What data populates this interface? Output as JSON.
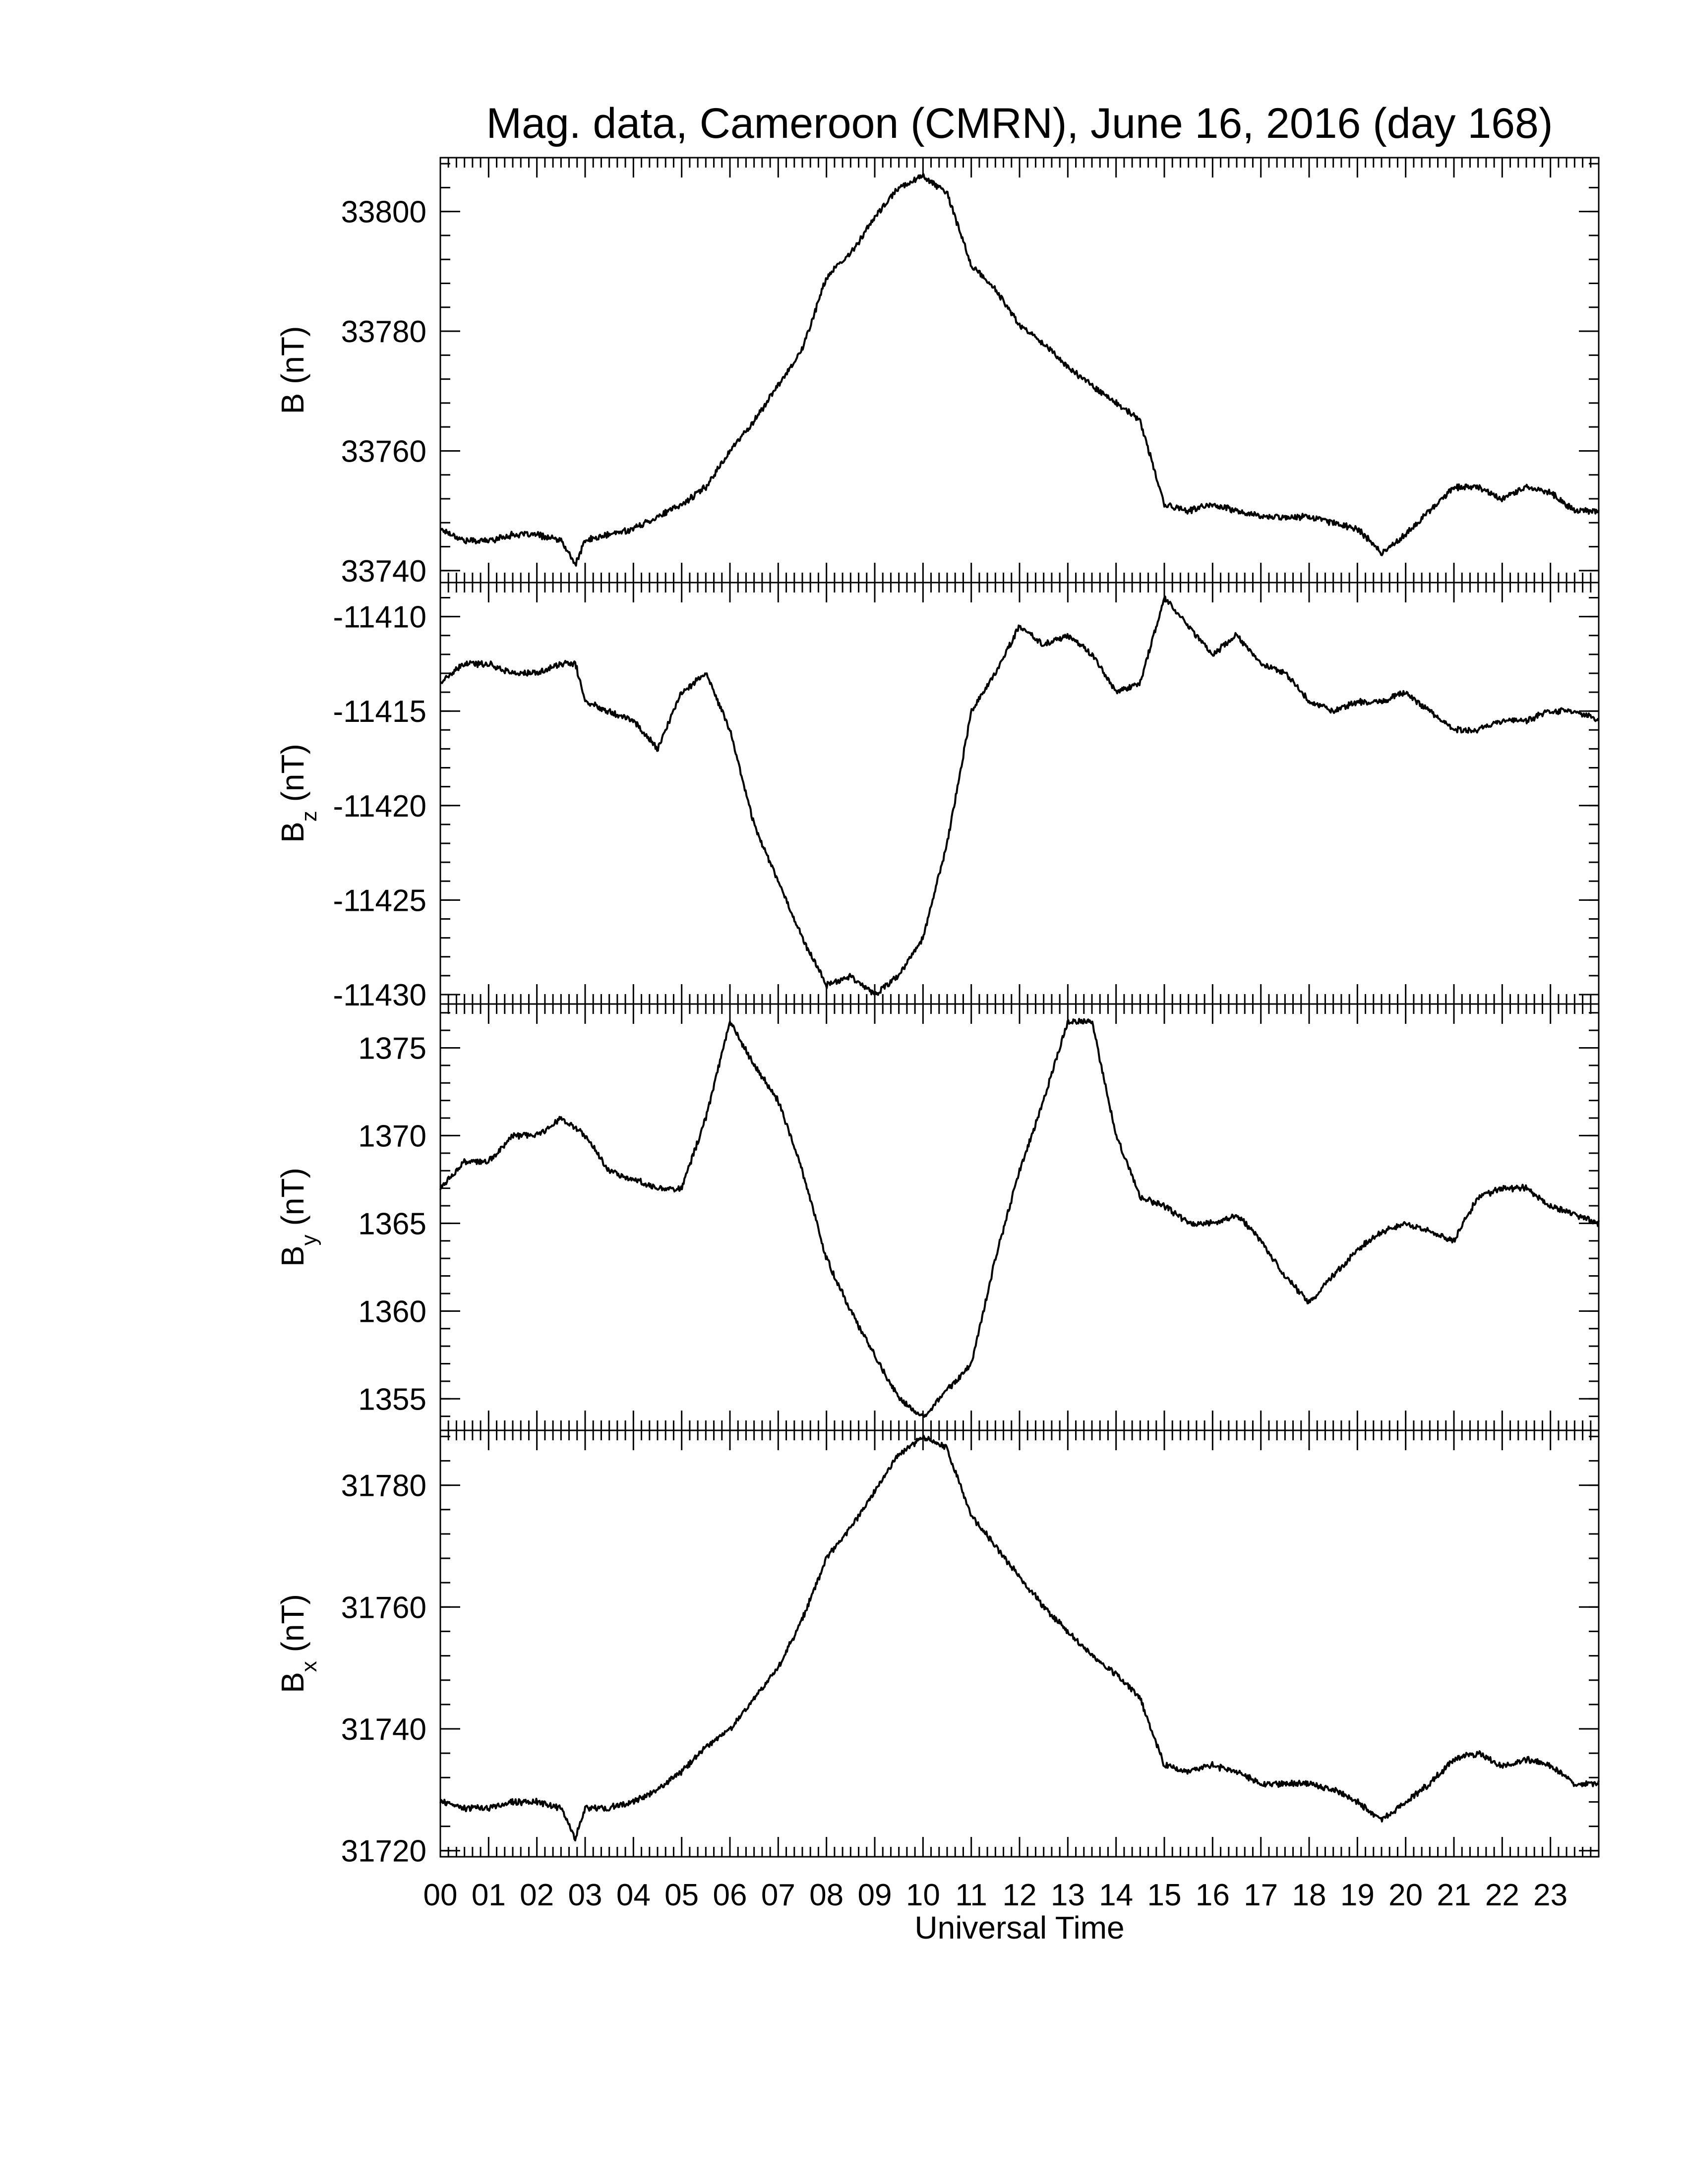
{
  "title": "Mag. data, Cameroon (CMRN), June 16, 2016 (day 168)",
  "colors": {
    "line": "#000000",
    "axes": "#000000",
    "background": "#ffffff"
  },
  "chart_data": {
    "type": "line",
    "title": "Mag. data, Cameroon (CMRN), June 16, 2016 (day 168)",
    "xlabel": "Universal Time",
    "x_tick_labels": [
      "00",
      "01",
      "02",
      "03",
      "04",
      "05",
      "06",
      "07",
      "08",
      "09",
      "10",
      "11",
      "12",
      "13",
      "14",
      "15",
      "16",
      "17",
      "18",
      "19",
      "20",
      "21",
      "22",
      "23"
    ],
    "xlim": [
      0,
      24
    ],
    "x_units": "hours UT",
    "grid": false,
    "legend": "none",
    "panels": [
      {
        "name": "B",
        "ylabel_main": "B",
        "ylabel_sub": "",
        "ylabel_unit": "(nT)",
        "ylim": [
          33738,
          33809
        ],
        "yticks": [
          33740,
          33760,
          33780,
          33800
        ],
        "ytick_labels": [
          "33740",
          "33760",
          "33780",
          "33800"
        ],
        "x": [
          0,
          0.5,
          1,
          1.5,
          2,
          2.5,
          2.8,
          3,
          3.5,
          4,
          4.5,
          5,
          5.5,
          6,
          6.5,
          7,
          7.5,
          8,
          8.5,
          9,
          9.5,
          10,
          10.5,
          11,
          11.5,
          12,
          12.5,
          13,
          13.5,
          14,
          14.5,
          15,
          15.5,
          16,
          16.5,
          17,
          17.5,
          18,
          18.5,
          19,
          19.5,
          20,
          20.5,
          21,
          21.5,
          22,
          22.5,
          23,
          23.5,
          24
        ],
        "y": [
          33747,
          33745,
          33745,
          33746,
          33746,
          33745,
          33741,
          33745,
          33746,
          33747,
          33749,
          33751,
          33754,
          33760,
          33765,
          33771,
          33777,
          33789,
          33793,
          33799,
          33804,
          33806,
          33803,
          33791,
          33787,
          33781,
          33778,
          33774,
          33771,
          33768,
          33765,
          33751,
          33750,
          33751,
          33750,
          33749,
          33749,
          33749,
          33748,
          33747,
          33743,
          33746,
          33750,
          33754,
          33754,
          33752,
          33754,
          33753,
          33750,
          33750
        ]
      },
      {
        "name": "Bz",
        "ylabel_main": "B",
        "ylabel_sub": "z",
        "ylabel_unit": "(nT)",
        "ylim": [
          -11430.5,
          -11408.2
        ],
        "yticks": [
          -11430,
          -11425,
          -11420,
          -11415,
          -11410
        ],
        "ytick_labels": [
          "-11430",
          "-11425",
          "-11420",
          "-11415",
          "-11410"
        ],
        "x": [
          0,
          0.5,
          1,
          1.5,
          2,
          2.5,
          2.8,
          3,
          3.5,
          4,
          4.5,
          5,
          5.5,
          6,
          6.5,
          7,
          7.5,
          8,
          8.5,
          9,
          9.5,
          10,
          10.5,
          11,
          11.5,
          12,
          12.5,
          13,
          13.5,
          14,
          14.5,
          15,
          15.5,
          16,
          16.5,
          17,
          17.5,
          18,
          18.5,
          19,
          19.5,
          20,
          20.5,
          21,
          21.5,
          22,
          22.5,
          23,
          23.5,
          24
        ],
        "y": [
          -11413.5,
          -11412.5,
          -11412.5,
          -11413,
          -11413,
          -11412.5,
          -11412.5,
          -11414.5,
          -11415,
          -11415.5,
          -11417,
          -11414,
          -11413,
          -11416,
          -11421,
          -11424,
          -11427,
          -11429.5,
          -11429,
          -11430,
          -11429,
          -11427,
          -11422,
          -11415,
          -11413,
          -11410.5,
          -11411.5,
          -11411,
          -11412,
          -11414,
          -11413.5,
          -11409,
          -11410.5,
          -11412,
          -11411,
          -11412.5,
          -11413,
          -11414.5,
          -11415,
          -11414.5,
          -11414.5,
          -11414,
          -11415,
          -11416,
          -11416,
          -11415.5,
          -11415.5,
          -11415,
          -11415,
          -11415.5
        ]
      },
      {
        "name": "By",
        "ylabel_main": "B",
        "ylabel_sub": "y",
        "ylabel_unit": "(nT)",
        "ylim": [
          1353.2,
          1377.5
        ],
        "yticks": [
          1355,
          1360,
          1365,
          1370,
          1375
        ],
        "ytick_labels": [
          "1355",
          "1360",
          "1365",
          "1370",
          "1375"
        ],
        "x": [
          0,
          0.5,
          1,
          1.5,
          2,
          2.5,
          3,
          3.5,
          4,
          4.5,
          5,
          5.5,
          6,
          6.5,
          7,
          7.5,
          8,
          8.5,
          9,
          9.5,
          10,
          10.5,
          11,
          11.5,
          12,
          12.5,
          13,
          13.5,
          14,
          14.5,
          15,
          15.5,
          16,
          16.5,
          17,
          17.5,
          18,
          18.5,
          19,
          19.5,
          20,
          20.5,
          21,
          21.5,
          22,
          22.5,
          23,
          23.5,
          24
        ],
        "y": [
          1367,
          1368.5,
          1368.5,
          1370,
          1370,
          1371,
          1370,
          1368,
          1367.5,
          1367,
          1367,
          1371,
          1376.5,
          1374,
          1372,
          1368,
          1363,
          1360,
          1357.5,
          1355,
          1354,
          1355.5,
          1357,
          1363,
          1368,
          1372,
          1376.5,
          1376.5,
          1370,
          1366.5,
          1366,
          1365,
          1365,
          1365.5,
          1364,
          1362,
          1360.5,
          1362,
          1363.5,
          1364.5,
          1365,
          1364.5,
          1364,
          1366.5,
          1367,
          1367,
          1366,
          1365.5,
          1365
        ]
      },
      {
        "name": "Bx",
        "ylabel_main": "B",
        "ylabel_sub": "x",
        "ylabel_unit": "(nT)",
        "ylim": [
          31719,
          31789
        ],
        "yticks": [
          31720,
          31740,
          31760,
          31780
        ],
        "ytick_labels": [
          "31720",
          "31740",
          "31760",
          "31780"
        ],
        "x": [
          0,
          0.5,
          1,
          1.5,
          2,
          2.5,
          2.8,
          3,
          3.5,
          4,
          4.5,
          5,
          5.5,
          6,
          6.5,
          7,
          7.5,
          8,
          8.5,
          9,
          9.5,
          10,
          10.5,
          11,
          11.5,
          12,
          12.5,
          13,
          13.5,
          14,
          14.5,
          15,
          15.5,
          16,
          16.5,
          17,
          17.5,
          18,
          18.5,
          19,
          19.5,
          20,
          20.5,
          21,
          21.5,
          22,
          22.5,
          23,
          23.5,
          24
        ],
        "y": [
          31728,
          31727,
          31727,
          31728,
          31728,
          31727,
          31722,
          31727,
          31727,
          31728,
          31730,
          31733,
          31737,
          31740,
          31745,
          31750,
          31758,
          31768,
          31773,
          31779,
          31785,
          31788,
          31786,
          31775,
          31770,
          31765,
          31760,
          31756,
          31752,
          31749,
          31745,
          31734,
          31733,
          31734,
          31733,
          31731,
          31731,
          31731,
          31730,
          31728,
          31725,
          31728,
          31731,
          31735,
          31736,
          31734,
          31735,
          31734,
          31731,
          31731
        ]
      }
    ]
  }
}
